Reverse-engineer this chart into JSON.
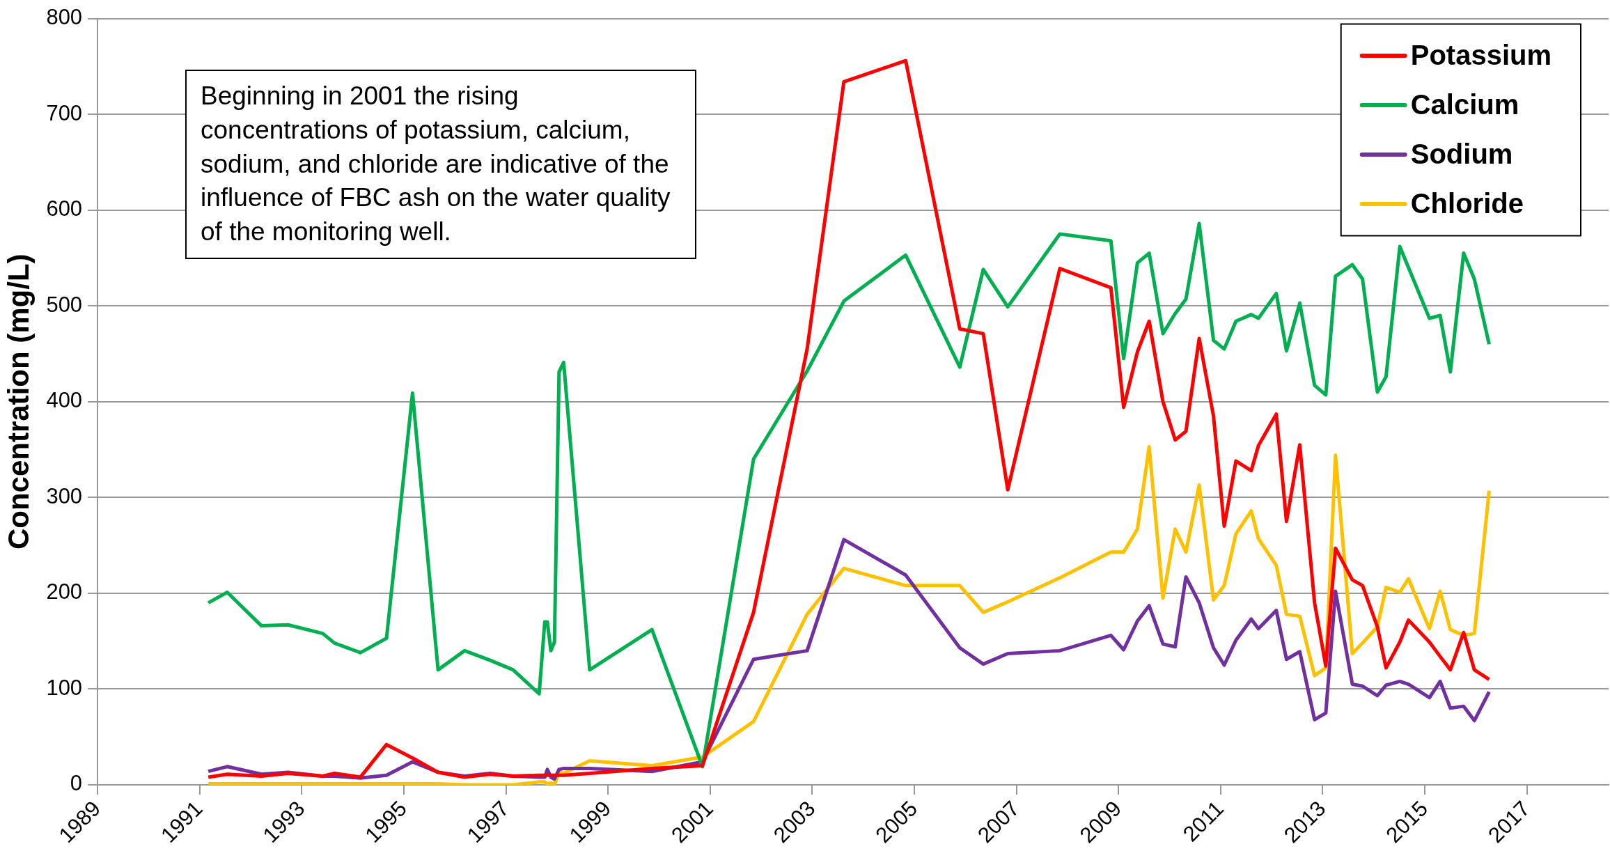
{
  "chart_data": {
    "type": "line",
    "ylabel": "Concentration (mg/L)",
    "annotations": [
      "Beginning in 2001 the rising concentrations of potassium, calcium, sodium, and chloride are indicative of the influence of FBC ash on the water quality of the monitoring well."
    ],
    "x": [
      1991.17,
      1991.54,
      1992.21,
      1992.73,
      1993.41,
      1993.64,
      1994.15,
      1994.66,
      1995.17,
      1995.67,
      1996.19,
      1996.69,
      1997.14,
      1997.65,
      1997.76,
      1997.81,
      1997.88,
      1997.95,
      1998.04,
      1998.13,
      1998.64,
      1999.86,
      2000.85,
      2001.85,
      2002.9,
      2003.62,
      2004.83,
      2005.89,
      2006.35,
      2006.83,
      2007.85,
      2008.85,
      2009.1,
      2009.37,
      2009.6,
      2009.87,
      2010.11,
      2010.32,
      2010.58,
      2010.86,
      2011.07,
      2011.3,
      2011.6,
      2011.74,
      2012.09,
      2012.29,
      2012.55,
      2012.84,
      2013.06,
      2013.25,
      2013.58,
      2013.78,
      2014.07,
      2014.24,
      2014.51,
      2014.68,
      2015.09,
      2015.3,
      2015.5,
      2015.76,
      2015.97,
      2016.26
    ],
    "series": [
      {
        "name": "Potassium",
        "color": "#ff0000",
        "values": [
          8,
          11,
          9,
          12,
          9,
          12,
          8,
          42,
          28,
          13,
          8,
          11,
          9,
          10,
          10,
          10,
          10,
          10,
          10,
          10,
          12,
          17,
          20,
          180,
          455,
          734,
          756,
          476,
          471,
          308,
          539,
          519,
          394,
          452,
          484,
          400,
          360,
          369,
          466,
          385,
          270,
          338,
          328,
          354,
          387,
          275,
          355,
          190,
          124,
          247,
          214,
          208,
          165,
          122,
          149,
          172,
          149,
          134,
          120,
          159,
          120,
          110
        ]
      },
      {
        "name": "Calcium",
        "color": "#00b050",
        "values": [
          190,
          201,
          166,
          167,
          158,
          148,
          138,
          153,
          409,
          120,
          140,
          130,
          120,
          95,
          170,
          170,
          140,
          149,
          431,
          441,
          120,
          162,
          19,
          340,
          432,
          505,
          553,
          436,
          538,
          499,
          575,
          568,
          445,
          545,
          555,
          471,
          492,
          507,
          586,
          464,
          455,
          484,
          491,
          487,
          513,
          453,
          503,
          417,
          407,
          531,
          543,
          528,
          410,
          426,
          562,
          540,
          487,
          490,
          431,
          555,
          528,
          460
        ]
      },
      {
        "name": "Sodium",
        "color": "#7030a0",
        "values": [
          14,
          19,
          11,
          13,
          9,
          9,
          7,
          10,
          24,
          13,
          9,
          12,
          9,
          8,
          8,
          16,
          8,
          6,
          16,
          17,
          17,
          14,
          24,
          131,
          140,
          256,
          219,
          143,
          126,
          137,
          140,
          156,
          141,
          171,
          187,
          147,
          144,
          217,
          190,
          143,
          125,
          151,
          173,
          163,
          182,
          131,
          139,
          68,
          75,
          202,
          105,
          103,
          93,
          104,
          108,
          105,
          91,
          108,
          80,
          82,
          67,
          97
        ]
      },
      {
        "name": "Chloride",
        "color": "#ffc000",
        "values": [
          1,
          1,
          1,
          1,
          1,
          1,
          1,
          1,
          1,
          1,
          0,
          0,
          0,
          3,
          3,
          1,
          2,
          0,
          13,
          12,
          25,
          20,
          29,
          66,
          178,
          226,
          208,
          208,
          180,
          191,
          216,
          243,
          243,
          267,
          353,
          195,
          267,
          243,
          313,
          193,
          208,
          262,
          286,
          257,
          229,
          178,
          176,
          114,
          122,
          344,
          137,
          148,
          165,
          206,
          201,
          215,
          163,
          202,
          162,
          156,
          158,
          307
        ]
      }
    ],
    "xlim": [
      1989,
      2018.6
    ],
    "xticks": [
      1989,
      1991,
      1993,
      1995,
      1997,
      1999,
      2001,
      2003,
      2005,
      2007,
      2009,
      2011,
      2013,
      2015,
      2017
    ],
    "ylim": [
      0,
      800
    ],
    "yticks": [
      0,
      100,
      200,
      300,
      400,
      500,
      600,
      700,
      800
    ],
    "grid": "y",
    "legend": "top right",
    "marker": "none",
    "line_style": "solid"
  }
}
